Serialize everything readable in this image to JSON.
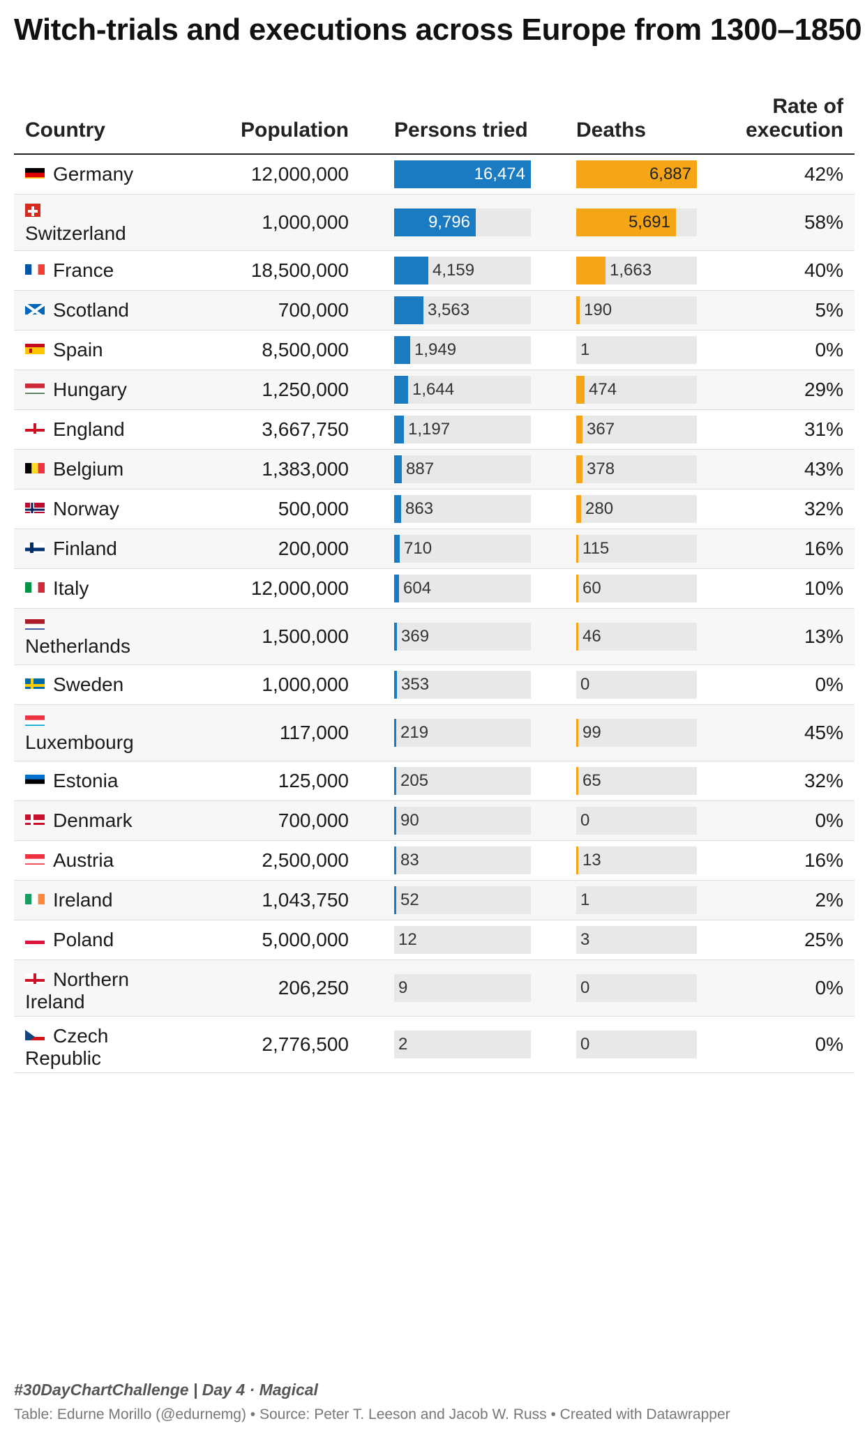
{
  "title": "Witch-trials and executions across Europe from 1300–1850",
  "headers": {
    "country": "Country",
    "population": "Population",
    "tried": "Persons tried",
    "deaths": "Deaths",
    "rate": "Rate of execution"
  },
  "colors": {
    "tried": "#1a7ac2",
    "deaths": "#f6a516",
    "track": "#e8e8e8"
  },
  "chart_data": {
    "type": "table",
    "title": "Witch-trials and executions across Europe from 1300–1850",
    "columns": [
      "Country",
      "Population",
      "Persons tried",
      "Deaths",
      "Rate of execution"
    ],
    "bar_max": {
      "tried": 16474,
      "deaths": 6887
    },
    "rows": [
      {
        "country": "Germany",
        "flag": "flag-germany",
        "population": "12,000,000",
        "tried": 16474,
        "deaths": 6887,
        "rate": "42%"
      },
      {
        "country": "Switzerland",
        "flag": "flag-switzerland",
        "population": "1,000,000",
        "tried": 9796,
        "deaths": 5691,
        "rate": "58%"
      },
      {
        "country": "France",
        "flag": "flag-france",
        "population": "18,500,000",
        "tried": 4159,
        "deaths": 1663,
        "rate": "40%"
      },
      {
        "country": "Scotland",
        "flag": "flag-scotland",
        "population": "700,000",
        "tried": 3563,
        "deaths": 190,
        "rate": "5%"
      },
      {
        "country": "Spain",
        "flag": "flag-spain",
        "population": "8,500,000",
        "tried": 1949,
        "deaths": 1,
        "rate": "0%"
      },
      {
        "country": "Hungary",
        "flag": "flag-hungary",
        "population": "1,250,000",
        "tried": 1644,
        "deaths": 474,
        "rate": "29%"
      },
      {
        "country": "England",
        "flag": "flag-england",
        "population": "3,667,750",
        "tried": 1197,
        "deaths": 367,
        "rate": "31%"
      },
      {
        "country": "Belgium",
        "flag": "flag-belgium",
        "population": "1,383,000",
        "tried": 887,
        "deaths": 378,
        "rate": "43%"
      },
      {
        "country": "Norway",
        "flag": "flag-norway",
        "population": "500,000",
        "tried": 863,
        "deaths": 280,
        "rate": "32%"
      },
      {
        "country": "Finland",
        "flag": "flag-finland",
        "population": "200,000",
        "tried": 710,
        "deaths": 115,
        "rate": "16%"
      },
      {
        "country": "Italy",
        "flag": "flag-italy",
        "population": "12,000,000",
        "tried": 604,
        "deaths": 60,
        "rate": "10%"
      },
      {
        "country": "Netherlands",
        "flag": "flag-netherlands",
        "population": "1,500,000",
        "tried": 369,
        "deaths": 46,
        "rate": "13%"
      },
      {
        "country": "Sweden",
        "flag": "flag-sweden",
        "population": "1,000,000",
        "tried": 353,
        "deaths": 0,
        "rate": "0%"
      },
      {
        "country": "Luxembourg",
        "flag": "flag-luxembourg",
        "population": "117,000",
        "tried": 219,
        "deaths": 99,
        "rate": "45%"
      },
      {
        "country": "Estonia",
        "flag": "flag-estonia",
        "population": "125,000",
        "tried": 205,
        "deaths": 65,
        "rate": "32%"
      },
      {
        "country": "Denmark",
        "flag": "flag-denmark",
        "population": "700,000",
        "tried": 90,
        "deaths": 0,
        "rate": "0%"
      },
      {
        "country": "Austria",
        "flag": "flag-austria",
        "population": "2,500,000",
        "tried": 83,
        "deaths": 13,
        "rate": "16%"
      },
      {
        "country": "Ireland",
        "flag": "flag-ireland",
        "population": "1,043,750",
        "tried": 52,
        "deaths": 1,
        "rate": "2%"
      },
      {
        "country": "Poland",
        "flag": "flag-poland",
        "population": "5,000,000",
        "tried": 12,
        "deaths": 3,
        "rate": "25%"
      },
      {
        "country": "Northern Ireland",
        "flag": "flag-northern-ireland",
        "population": "206,250",
        "tried": 9,
        "deaths": 0,
        "rate": "0%"
      },
      {
        "country": "Czech Republic",
        "flag": "flag-czech-republic",
        "population": "2,776,500",
        "tried": 2,
        "deaths": 0,
        "rate": "0%"
      }
    ]
  },
  "footer": {
    "challenge": "#30DayChartChallenge | Day 4 · Magical",
    "credit": "Table: Edurne Morillo (@edurnemg) • Source: Peter T. Leeson and Jacob W. Russ • Created with Datawrapper"
  }
}
